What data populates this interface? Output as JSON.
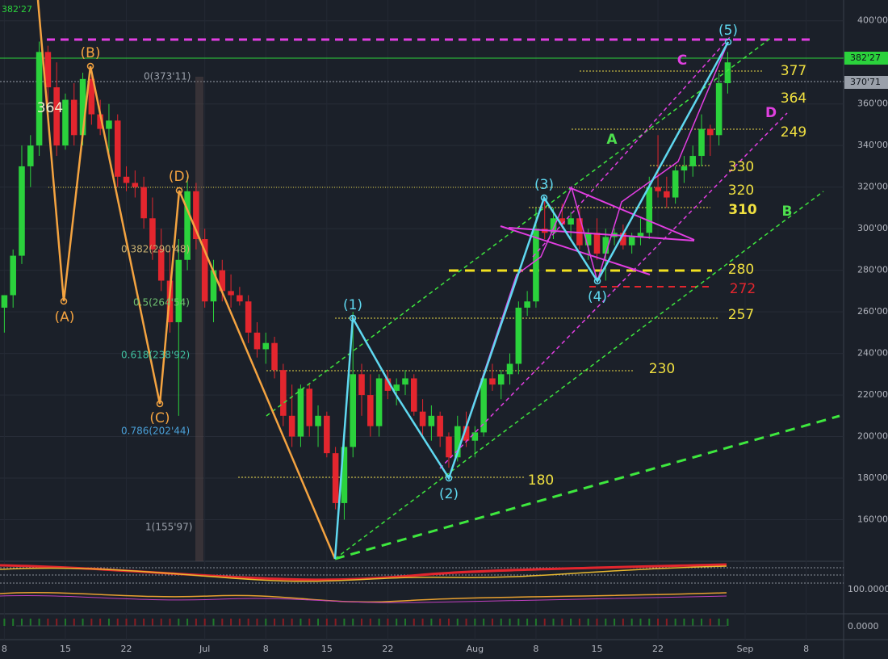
{
  "chart_data": {
    "type": "candlestick",
    "x": [
      0,
      1,
      2,
      3,
      4,
      5,
      6,
      7,
      8,
      9,
      10,
      11,
      12,
      13,
      14,
      15,
      16,
      17,
      18,
      19,
      20,
      21,
      22,
      23,
      24,
      25,
      26,
      27,
      28,
      29,
      30,
      31,
      32,
      33,
      34,
      35,
      36,
      37,
      38,
      39,
      40,
      41,
      42,
      43,
      44,
      45,
      46,
      47,
      48,
      49,
      50,
      51,
      52,
      53,
      54,
      55,
      56,
      57,
      58,
      59,
      60,
      61,
      62,
      63,
      64,
      65,
      66,
      67,
      68,
      69,
      70,
      71,
      72,
      73,
      74,
      75,
      76,
      77,
      78,
      79,
      80,
      81,
      82,
      83
    ],
    "open": [
      262,
      268,
      287,
      330,
      340,
      385,
      368,
      340,
      362,
      345,
      372,
      355,
      348,
      352,
      325,
      322,
      320,
      305,
      290,
      275,
      255,
      285,
      318,
      295,
      265,
      280,
      270,
      268,
      265,
      250,
      242,
      245,
      232,
      210,
      200,
      223,
      205,
      210,
      192,
      168,
      195,
      230,
      220,
      205,
      228,
      222,
      225,
      228,
      212,
      205,
      210,
      200,
      190,
      205,
      198,
      202,
      228,
      225,
      230,
      235,
      262,
      265,
      300,
      298,
      305,
      302,
      305,
      292,
      298,
      288,
      296,
      298,
      292,
      296,
      298,
      320,
      318,
      315,
      328,
      330,
      335,
      348,
      345,
      370
    ],
    "high": [
      268,
      290,
      340,
      345,
      390,
      388,
      380,
      365,
      370,
      375,
      375,
      362,
      360,
      355,
      330,
      328,
      325,
      315,
      300,
      290,
      295,
      325,
      322,
      300,
      285,
      285,
      278,
      272,
      268,
      255,
      250,
      248,
      235,
      225,
      225,
      225,
      215,
      212,
      195,
      200,
      260,
      235,
      230,
      230,
      232,
      228,
      232,
      230,
      218,
      215,
      212,
      202,
      210,
      212,
      205,
      230,
      235,
      232,
      240,
      265,
      270,
      310,
      315,
      310,
      312,
      308,
      310,
      300,
      305,
      300,
      300,
      302,
      298,
      305,
      325,
      345,
      325,
      330,
      335,
      340,
      355,
      350,
      375,
      385
    ],
    "low": [
      250,
      262,
      283,
      320,
      335,
      360,
      335,
      338,
      340,
      340,
      350,
      345,
      335,
      320,
      318,
      315,
      300,
      285,
      270,
      250,
      210,
      280,
      290,
      262,
      255,
      265,
      262,
      263,
      245,
      238,
      235,
      228,
      205,
      195,
      195,
      200,
      195,
      190,
      165,
      160,
      190,
      210,
      200,
      200,
      218,
      215,
      220,
      210,
      200,
      198,
      195,
      185,
      188,
      195,
      190,
      200,
      222,
      218,
      225,
      230,
      258,
      262,
      295,
      295,
      300,
      295,
      290,
      285,
      285,
      275,
      292,
      290,
      288,
      292,
      295,
      315,
      310,
      312,
      322,
      325,
      330,
      335,
      340,
      365
    ],
    "close": [
      268,
      287,
      330,
      340,
      385,
      368,
      340,
      362,
      345,
      372,
      355,
      348,
      352,
      325,
      322,
      320,
      305,
      290,
      275,
      255,
      285,
      318,
      295,
      265,
      280,
      270,
      268,
      265,
      250,
      242,
      245,
      232,
      210,
      200,
      223,
      205,
      210,
      192,
      168,
      195,
      230,
      220,
      205,
      228,
      222,
      225,
      228,
      212,
      205,
      210,
      200,
      190,
      205,
      198,
      202,
      228,
      225,
      230,
      235,
      262,
      265,
      300,
      298,
      305,
      302,
      305,
      292,
      298,
      288,
      296,
      298,
      292,
      296,
      298,
      320,
      318,
      315,
      328,
      330,
      335,
      348,
      345,
      370,
      380
    ],
    "up_color": "#2bd23c",
    "down_color": "#e3262e",
    "xlim": [
      -0.5,
      96.3
    ],
    "ylim": [
      140,
      410
    ],
    "yticks": [
      {
        "value": 400,
        "label": "400'00"
      },
      {
        "value": 360,
        "label": "360'00"
      },
      {
        "value": 340,
        "label": "340'00"
      },
      {
        "value": 320,
        "label": "320'00"
      },
      {
        "value": 300,
        "label": "300'00"
      },
      {
        "value": 280,
        "label": "280'00"
      },
      {
        "value": 260,
        "label": "260'00"
      },
      {
        "value": 240,
        "label": "240'00"
      },
      {
        "value": 220,
        "label": "220'00"
      },
      {
        "value": 200,
        "label": "200'00"
      },
      {
        "value": 180,
        "label": "180'00"
      },
      {
        "value": 160,
        "label": "160'00"
      }
    ],
    "xticks": [
      {
        "value": 0,
        "label": "8"
      },
      {
        "value": 7,
        "label": "15"
      },
      {
        "value": 14,
        "label": "22"
      },
      {
        "value": 23,
        "label": "Jul"
      },
      {
        "value": 30,
        "label": "8"
      },
      {
        "value": 37,
        "label": "15"
      },
      {
        "value": 44,
        "label": "22"
      },
      {
        "value": 54,
        "label": "Aug"
      },
      {
        "value": 61,
        "label": "8"
      },
      {
        "value": 68,
        "label": "15"
      },
      {
        "value": 75,
        "label": "22"
      },
      {
        "value": 85,
        "label": "Sep"
      },
      {
        "value": 92,
        "label": "8"
      }
    ],
    "grid": true,
    "price_tags": [
      "382'27",
      "370'71"
    ],
    "corner_label": "382'27",
    "indicator_labels": [
      "100.0000",
      "0.0000"
    ],
    "annotations": [
      "(A)",
      "(B)",
      "(C)",
      "(D)",
      "(1)",
      "(2)",
      "(3)",
      "(4)",
      "(5)",
      "A",
      "B",
      "C",
      "D",
      "377",
      "364",
      "249",
      "330",
      "320",
      "310",
      "280",
      "272",
      "257",
      "230",
      "180",
      "364",
      "0(373'11)",
      "0.382(290'48)",
      "0.5(264'54)",
      "0.618(238'92)",
      "0.786(202'44)",
      "1(155'97)"
    ]
  }
}
